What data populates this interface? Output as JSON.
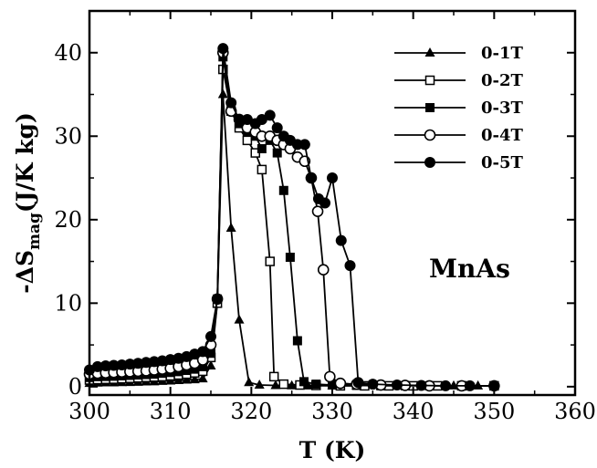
{
  "chart_data": {
    "type": "line",
    "xlabel": "T (K)",
    "ylabel_parts": {
      "prefix": "-ΔS",
      "subscript": "mag",
      "suffix": "(J/K kg)"
    },
    "xlim": [
      300,
      360
    ],
    "ylim": [
      -1,
      45
    ],
    "xticks": [
      300,
      310,
      320,
      330,
      340,
      350,
      360
    ],
    "yticks": [
      0,
      10,
      20,
      30,
      40
    ],
    "annotation": "MnAs",
    "legend_position": "top-right",
    "series": [
      {
        "name": "0-1T",
        "marker": "triangle-filled",
        "points": [
          [
            300,
            0.4
          ],
          [
            301,
            0.45
          ],
          [
            302,
            0.47
          ],
          [
            303,
            0.48
          ],
          [
            304,
            0.5
          ],
          [
            305,
            0.52
          ],
          [
            306,
            0.55
          ],
          [
            307,
            0.58
          ],
          [
            308,
            0.6
          ],
          [
            309,
            0.65
          ],
          [
            310,
            0.7
          ],
          [
            311,
            0.75
          ],
          [
            312,
            0.8
          ],
          [
            313,
            0.85
          ],
          [
            314,
            0.95
          ],
          [
            315,
            2.5
          ],
          [
            315.8,
            10
          ],
          [
            316.5,
            35
          ],
          [
            317.5,
            19
          ],
          [
            318.5,
            8
          ],
          [
            319.7,
            0.5
          ],
          [
            321,
            0.2
          ],
          [
            323,
            0.15
          ],
          [
            325,
            0.12
          ],
          [
            327,
            0.1
          ],
          [
            330,
            0.1
          ],
          [
            333,
            0.1
          ],
          [
            336,
            0.1
          ],
          [
            339,
            0.1
          ],
          [
            342,
            0.1
          ],
          [
            345,
            0.1
          ],
          [
            348,
            0.1
          ],
          [
            350,
            0.1
          ]
        ]
      },
      {
        "name": "0-2T",
        "marker": "square-open",
        "points": [
          [
            300,
            0.8
          ],
          [
            301,
            0.85
          ],
          [
            302,
            0.88
          ],
          [
            303,
            0.9
          ],
          [
            304,
            0.95
          ],
          [
            305,
            1.0
          ],
          [
            306,
            1.05
          ],
          [
            307,
            1.1
          ],
          [
            308,
            1.15
          ],
          [
            309,
            1.2
          ],
          [
            310,
            1.3
          ],
          [
            311,
            1.4
          ],
          [
            312,
            1.5
          ],
          [
            313,
            1.65
          ],
          [
            314,
            1.85
          ],
          [
            315,
            3.5
          ],
          [
            315.8,
            10
          ],
          [
            316.5,
            38
          ],
          [
            317.5,
            33
          ],
          [
            318.5,
            31
          ],
          [
            319.5,
            29.5
          ],
          [
            320.5,
            28
          ],
          [
            321.3,
            26
          ],
          [
            322.3,
            15
          ],
          [
            322.8,
            1.2
          ],
          [
            324,
            0.3
          ],
          [
            326,
            0.2
          ],
          [
            328,
            0.15
          ],
          [
            331,
            0.1
          ],
          [
            334,
            0.1
          ],
          [
            337,
            0.1
          ],
          [
            340,
            0.1
          ],
          [
            343,
            0.1
          ],
          [
            346,
            0.1
          ],
          [
            350,
            0.1
          ]
        ]
      },
      {
        "name": "0-3T",
        "marker": "square-filled",
        "points": [
          [
            300,
            1.1
          ],
          [
            301,
            1.2
          ],
          [
            302,
            1.22
          ],
          [
            303,
            1.25
          ],
          [
            304,
            1.3
          ],
          [
            305,
            1.35
          ],
          [
            306,
            1.4
          ],
          [
            307,
            1.45
          ],
          [
            308,
            1.5
          ],
          [
            309,
            1.6
          ],
          [
            310,
            1.7
          ],
          [
            311,
            1.8
          ],
          [
            312,
            1.95
          ],
          [
            313,
            2.1
          ],
          [
            314,
            2.4
          ],
          [
            315,
            4.0
          ],
          [
            315.8,
            10.5
          ],
          [
            316.5,
            39.5
          ],
          [
            317.5,
            33
          ],
          [
            318.5,
            31.5
          ],
          [
            319.5,
            30.5
          ],
          [
            320.5,
            30
          ],
          [
            321.3,
            28.5
          ],
          [
            322.3,
            29.5
          ],
          [
            323.2,
            28
          ],
          [
            324,
            23.5
          ],
          [
            324.8,
            15.5
          ],
          [
            325.7,
            5.5
          ],
          [
            326.5,
            0.6
          ],
          [
            328,
            0.3
          ],
          [
            330,
            0.2
          ],
          [
            333,
            0.15
          ],
          [
            336,
            0.1
          ],
          [
            339,
            0.1
          ],
          [
            342,
            0.1
          ],
          [
            346,
            0.1
          ],
          [
            350,
            0.1
          ]
        ]
      },
      {
        "name": "0-4T",
        "marker": "circle-open",
        "points": [
          [
            300,
            1.5
          ],
          [
            301,
            1.6
          ],
          [
            302,
            1.65
          ],
          [
            303,
            1.7
          ],
          [
            304,
            1.75
          ],
          [
            305,
            1.8
          ],
          [
            306,
            1.85
          ],
          [
            307,
            1.9
          ],
          [
            308,
            2.0
          ],
          [
            309,
            2.1
          ],
          [
            310,
            2.2
          ],
          [
            311,
            2.4
          ],
          [
            312,
            2.6
          ],
          [
            313,
            2.8
          ],
          [
            314,
            3.2
          ],
          [
            315,
            5
          ],
          [
            315.8,
            10.5
          ],
          [
            316.5,
            40
          ],
          [
            317.5,
            33
          ],
          [
            318.5,
            32
          ],
          [
            319.5,
            31
          ],
          [
            320.5,
            30.5
          ],
          [
            321.3,
            30
          ],
          [
            322.3,
            30
          ],
          [
            323.2,
            29.5
          ],
          [
            324,
            29
          ],
          [
            324.8,
            28.5
          ],
          [
            325.7,
            27.5
          ],
          [
            326.6,
            27
          ],
          [
            327.4,
            25
          ],
          [
            328.2,
            21
          ],
          [
            328.9,
            14
          ],
          [
            329.7,
            1.2
          ],
          [
            331,
            0.4
          ],
          [
            333,
            0.3
          ],
          [
            336,
            0.2
          ],
          [
            339,
            0.15
          ],
          [
            342,
            0.1
          ],
          [
            346,
            0.1
          ],
          [
            350,
            0.1
          ]
        ]
      },
      {
        "name": "0-5T",
        "marker": "circle-filled",
        "points": [
          [
            300,
            2.0
          ],
          [
            301,
            2.4
          ],
          [
            302,
            2.5
          ],
          [
            303,
            2.55
          ],
          [
            304,
            2.6
          ],
          [
            305,
            2.7
          ],
          [
            306,
            2.8
          ],
          [
            307,
            2.9
          ],
          [
            308,
            3.0
          ],
          [
            309,
            3.1
          ],
          [
            310,
            3.25
          ],
          [
            311,
            3.4
          ],
          [
            312,
            3.6
          ],
          [
            313,
            3.9
          ],
          [
            314,
            4.2
          ],
          [
            315,
            6
          ],
          [
            315.8,
            10.5
          ],
          [
            316.5,
            40.5
          ],
          [
            317.5,
            34
          ],
          [
            318.5,
            32
          ],
          [
            319.5,
            32
          ],
          [
            320.5,
            31.5
          ],
          [
            321.3,
            32
          ],
          [
            322.3,
            32.5
          ],
          [
            323.2,
            31
          ],
          [
            324,
            30
          ],
          [
            324.8,
            29.5
          ],
          [
            325.7,
            29
          ],
          [
            326.6,
            29
          ],
          [
            327.4,
            25
          ],
          [
            328.3,
            22.5
          ],
          [
            329.1,
            22
          ],
          [
            330,
            25
          ],
          [
            331.1,
            17.5
          ],
          [
            332.2,
            14.5
          ],
          [
            333.2,
            0.5
          ],
          [
            335,
            0.3
          ],
          [
            338,
            0.2
          ],
          [
            341,
            0.15
          ],
          [
            344,
            0.1
          ],
          [
            347,
            0.1
          ],
          [
            350,
            0.1
          ]
        ]
      }
    ]
  }
}
